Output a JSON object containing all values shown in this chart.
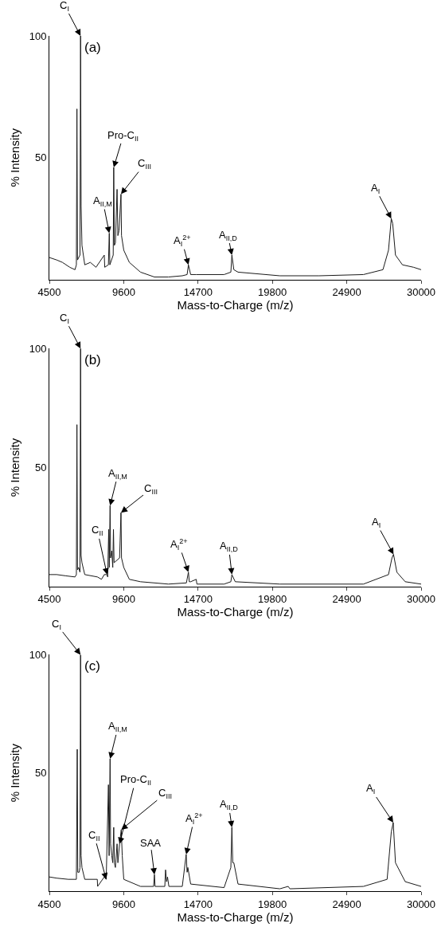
{
  "chart_data": [
    {
      "type": "line",
      "xlabel": "Mass-to-Charge (m/z)",
      "ylabel": "% Intensity",
      "xlim": [
        4500,
        30000
      ],
      "xticks": [
        4500,
        9600,
        14700,
        19800,
        24900,
        30000
      ],
      "ylim": [
        0,
        100
      ],
      "yticks": [
        50,
        100
      ],
      "marker": "none",
      "line_style": "solid",
      "series": [
        {
          "color": "#1a1a1a",
          "x": [
            4500,
            5000,
            5400,
            5900,
            6259,
            6354,
            6392,
            6430,
            6600,
            6641,
            6680,
            6736,
            6928,
            7310,
            7700,
            8266,
            8300,
            8550,
            8610,
            8650,
            8880,
            8916,
            8960,
            9030,
            9145,
            9200,
            9279,
            9413,
            9450,
            9604,
            9986,
            10751,
            11707,
            12662,
            13618,
            13950,
            14039,
            14192,
            14574,
            16486,
            16950,
            17020,
            17154,
            17441,
            20308,
            23000,
            26043,
            27381,
            27763,
            27954,
            28050,
            28241,
            28719,
            29483,
            30000
          ],
          "values": [
            9,
            8,
            7,
            5,
            4,
            6,
            70,
            8,
            10,
            100,
            30,
            14,
            6,
            7,
            5,
            10,
            5,
            6,
            19,
            6,
            10,
            46,
            14,
            15,
            37,
            18,
            20,
            35,
            18,
            12,
            7,
            3,
            1,
            1,
            1.5,
            2,
            6,
            2,
            2,
            2,
            3,
            10,
            4,
            3,
            1.5,
            1.5,
            2,
            4,
            12,
            25,
            23,
            10,
            6,
            5,
            4
          ]
        }
      ],
      "annotations": [
        "(a)",
        {
          "text": "C$_{I}$",
          "x": 6641,
          "y": 100
        },
        {
          "text": "Pro-C$_{II}$",
          "x": 8916,
          "y": 46
        },
        {
          "text": "C$_{III}$",
          "x": 9413,
          "y": 35
        },
        {
          "text": "A$_{II,M}$",
          "x": 8610,
          "y": 19
        },
        {
          "text": "A$_{I}$$^{2+}$",
          "x": 14039,
          "y": 6
        },
        {
          "text": "A$_{II,D}$",
          "x": 17020,
          "y": 10
        },
        {
          "text": "A$_{I}$",
          "x": 27954,
          "y": 25
        }
      ]
    },
    {
      "type": "line",
      "xlabel": "Mass-to-Charge (m/z)",
      "ylabel": "% Intensity",
      "xlim": [
        4500,
        30000
      ],
      "xticks": [
        4500,
        9600,
        14700,
        19800,
        24900,
        30000
      ],
      "ylim": [
        0,
        100
      ],
      "yticks": [
        50,
        100
      ],
      "marker": "none",
      "line_style": "solid",
      "series": [
        {
          "color": "#1a1a1a",
          "x": [
            4500,
            5000,
            5600,
            6259,
            6354,
            6392,
            6430,
            6507,
            6600,
            6641,
            6680,
            6736,
            6928,
            7800,
            8075,
            8266,
            8457,
            8500,
            8572,
            8610,
            8667,
            8700,
            8782,
            8850,
            8897,
            8940,
            9317,
            9413,
            9450,
            9604,
            9986,
            10751,
            12662,
            13900,
            14039,
            14100,
            14192,
            14574,
            14620,
            16486,
            16950,
            17020,
            17250,
            20308,
            26043,
            27763,
            28000,
            28107,
            28337,
            28910,
            30000
          ],
          "values": [
            5,
            5,
            4.5,
            4,
            5,
            68,
            7,
            8,
            6,
            100,
            13,
            10,
            5,
            4,
            3,
            5,
            5,
            4,
            24,
            8,
            34,
            12,
            15,
            8,
            24,
            10,
            12,
            31,
            12,
            8,
            3,
            2,
            1,
            1.5,
            6,
            2,
            2,
            3,
            1,
            1,
            2,
            5,
            2,
            1,
            1,
            5,
            12,
            13.5,
            6,
            2,
            1
          ]
        }
      ],
      "annotations": [
        "(b)",
        {
          "text": "C$_{I}$",
          "x": 6641,
          "y": 100
        },
        {
          "text": "A$_{II,M}$",
          "x": 8667,
          "y": 34
        },
        {
          "text": "C$_{III}$",
          "x": 9413,
          "y": 31
        },
        {
          "text": "C$_{II}$",
          "x": 8457,
          "y": 5
        },
        {
          "text": "A$_{I}$$^{2+}$",
          "x": 14039,
          "y": 6
        },
        {
          "text": "A$_{II,D}$",
          "x": 17020,
          "y": 5
        },
        {
          "text": "A$_{I}$",
          "x": 28107,
          "y": 13.5
        }
      ]
    },
    {
      "type": "line",
      "xlabel": "Mass-to-Charge (m/z)",
      "ylabel": "% Intensity",
      "xlim": [
        4500,
        30000
      ],
      "xticks": [
        4500,
        9600,
        14700,
        19800,
        24900,
        30000
      ],
      "ylim": [
        0,
        100
      ],
      "yticks": [
        50,
        100
      ],
      "marker": "none",
      "line_style": "solid",
      "series": [
        {
          "color": "#1a1a1a",
          "x": [
            4500,
            5000,
            5800,
            6354,
            6412,
            6450,
            6545,
            6600,
            6641,
            6680,
            6736,
            6928,
            7788,
            7810,
            8266,
            8400,
            8552,
            8600,
            8667,
            8700,
            8782,
            8850,
            8916,
            8960,
            9030,
            9145,
            9200,
            9317,
            9432,
            9500,
            9604,
            10751,
            11650,
            11707,
            11750,
            12420,
            12471,
            12540,
            12605,
            12700,
            13618,
            13885,
            13950,
            14000,
            14192,
            16486,
            16950,
            17020,
            17080,
            17154,
            17441,
            20308,
            20882,
            21000,
            26043,
            27668,
            27954,
            28088,
            28241,
            28910,
            30000
          ],
          "values": [
            6,
            5.5,
            5,
            5,
            60,
            8,
            8,
            10,
            100,
            15,
            10,
            5,
            5,
            2,
            6,
            5,
            45,
            15,
            56,
            20,
            15,
            12,
            27,
            12,
            10,
            20,
            12,
            20,
            26,
            15,
            5,
            2,
            2,
            7,
            2,
            2,
            9,
            4,
            6,
            2,
            2,
            15.5,
            8,
            10,
            3,
            1.5,
            10,
            27,
            12,
            12,
            3,
            1,
            2,
            1,
            2,
            5,
            25,
            29,
            12,
            4,
            2
          ]
        }
      ],
      "annotations": [
        "(c)",
        {
          "text": "C$_{I}$",
          "x": 6641,
          "y": 100
        },
        {
          "text": "A$_{II,M}$",
          "x": 8667,
          "y": 56
        },
        {
          "text": "Pro-C$_{II}$",
          "x": 9317,
          "y": 20
        },
        {
          "text": "C$_{III}$",
          "x": 9432,
          "y": 26
        },
        {
          "text": "C$_{II}$",
          "x": 8400,
          "y": 5
        },
        {
          "text": "SAA",
          "x": 11707,
          "y": 7
        },
        {
          "text": "A$_{I}$$^{2+}$",
          "x": 13885,
          "y": 15.5
        },
        {
          "text": "A$_{II,D}$",
          "x": 17020,
          "y": 27
        },
        {
          "text": "A$_{I}$",
          "x": 28088,
          "y": 29
        }
      ]
    }
  ]
}
